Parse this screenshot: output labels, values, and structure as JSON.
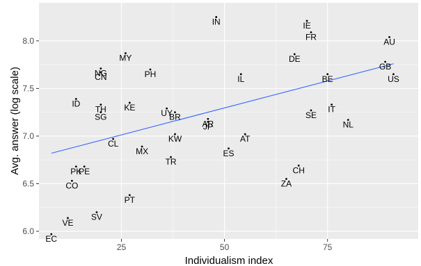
{
  "chart_data": {
    "type": "scatter",
    "title": "",
    "xlabel": "Individualism index",
    "ylabel": "Avg. answer (log scale)",
    "xlim": [
      5,
      97
    ],
    "ylim": [
      5.92,
      8.4
    ],
    "x_ticks": [
      25,
      50,
      75
    ],
    "y_ticks": [
      6.0,
      6.5,
      7.0,
      7.5,
      8.0
    ],
    "x_tick_labels": [
      "25",
      "50",
      "75"
    ],
    "y_tick_labels": [
      "6.0",
      "6.5",
      "7.0",
      "7.5",
      "8.0"
    ],
    "grid": true,
    "background": "#ebebeb",
    "grid_color": "#ffffff",
    "trend_color": "#3366ff",
    "trend_line": {
      "x": [
        8,
        91
      ],
      "y": [
        6.82,
        7.76
      ]
    },
    "points": [
      {
        "label": "EC",
        "x": 8,
        "y": 5.97
      },
      {
        "label": "VE",
        "x": 12,
        "y": 6.14
      },
      {
        "label": "SV",
        "x": 19,
        "y": 6.2
      },
      {
        "label": "CO",
        "x": 13,
        "y": 6.53
      },
      {
        "label": "PK",
        "x": 14,
        "y": 6.68
      },
      {
        "label": "PE",
        "x": 16,
        "y": 6.68
      },
      {
        "label": "ID",
        "x": 14,
        "y": 7.39
      },
      {
        "label": "TH",
        "x": 20,
        "y": 7.33
      },
      {
        "label": "SG",
        "x": 20,
        "y": 7.25
      },
      {
        "label": "CL",
        "x": 23,
        "y": 6.97
      },
      {
        "label": "NG",
        "x": 20,
        "y": 7.71
      },
      {
        "label": "CN",
        "x": 20,
        "y": 7.67
      },
      {
        "label": "MY",
        "x": 26,
        "y": 7.87
      },
      {
        "label": "KE",
        "x": 27,
        "y": 7.35
      },
      {
        "label": "PT",
        "x": 27,
        "y": 6.38
      },
      {
        "label": "MX",
        "x": 30,
        "y": 6.89
      },
      {
        "label": "PH",
        "x": 32,
        "y": 7.7
      },
      {
        "label": "UY",
        "x": 36,
        "y": 7.29
      },
      {
        "label": "BR",
        "x": 38,
        "y": 7.25
      },
      {
        "label": "TR",
        "x": 37,
        "y": 6.78
      },
      {
        "label": "KW",
        "x": 38,
        "y": 7.02
      },
      {
        "label": "AR",
        "x": 46,
        "y": 7.18
      },
      {
        "label": "JP",
        "x": 46,
        "y": 7.15
      },
      {
        "label": "IN",
        "x": 48,
        "y": 8.25
      },
      {
        "label": "ES",
        "x": 51,
        "y": 6.87
      },
      {
        "label": "AT",
        "x": 55,
        "y": 7.02
      },
      {
        "label": "IL",
        "x": 54,
        "y": 7.65
      },
      {
        "label": "ZA",
        "x": 65,
        "y": 6.55
      },
      {
        "label": "CH",
        "x": 68,
        "y": 6.69
      },
      {
        "label": "DE",
        "x": 67,
        "y": 7.86
      },
      {
        "label": "SE",
        "x": 71,
        "y": 7.27
      },
      {
        "label": "IE",
        "x": 70,
        "y": 8.21
      },
      {
        "label": "FR",
        "x": 71,
        "y": 8.09
      },
      {
        "label": "BE",
        "x": 75,
        "y": 7.65
      },
      {
        "label": "IT",
        "x": 76,
        "y": 7.33
      },
      {
        "label": "NL",
        "x": 80,
        "y": 7.17
      },
      {
        "label": "AU",
        "x": 90,
        "y": 8.04
      },
      {
        "label": "GB",
        "x": 89,
        "y": 7.78
      },
      {
        "label": "US",
        "x": 91,
        "y": 7.65
      }
    ]
  }
}
